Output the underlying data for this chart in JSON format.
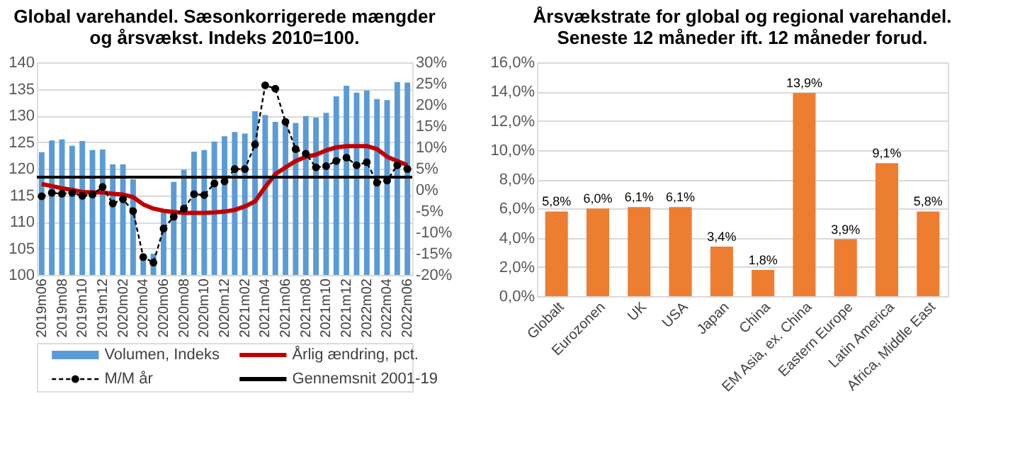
{
  "chart_data": [
    {
      "type": "bar",
      "title": "Global varehandel. Sæsonkorrigerede mængder\nog årsvækst. Indeks 2010=100.",
      "categories": [
        "2019m06",
        null,
        "2019m08",
        null,
        "2019m10",
        null,
        "2019m12",
        null,
        "2020m02",
        null,
        "2020m04",
        null,
        "2020m06",
        null,
        "2020m08",
        null,
        "2020m10",
        null,
        "2020m12",
        null,
        "2021m02",
        null,
        "2021m04",
        null,
        "2021m06",
        null,
        "2021m08",
        null,
        "2021m10",
        null,
        "2021m12",
        null,
        "2022m02",
        null,
        "2022m04",
        null,
        "2022m06"
      ],
      "series": [
        {
          "name": "Volumen, Indeks",
          "type": "bar",
          "color": "#5b9bd5",
          "values": [
            123.1,
            125.3,
            125.5,
            124.3,
            125.2,
            123.5,
            123.6,
            120.8,
            120.8,
            118.0,
            104.0,
            104.0,
            112.0,
            117.5,
            119.8,
            123.2,
            123.5,
            125.1,
            126.1,
            126.9,
            126.6,
            130.8,
            130.1,
            128.8,
            129.2,
            128.6,
            129.9,
            129.6,
            130.5,
            133.6,
            135.6,
            134.3,
            134.7,
            133.1,
            132.9,
            136.3,
            136.2
          ]
        },
        {
          "name": "Årlig ændring, pct.",
          "type": "line",
          "axis": "y2",
          "color": "#c00000",
          "line_style": "solid",
          "marker": "none",
          "values": [
            1.4,
            0.9,
            0.4,
            0.0,
            -0.5,
            -0.6,
            -0.6,
            -0.9,
            -1.1,
            -1.7,
            -3.4,
            -4.4,
            -4.9,
            -5.2,
            -5.4,
            -5.4,
            -5.4,
            -5.3,
            -5.1,
            -4.7,
            -3.9,
            -2.7,
            0.7,
            3.7,
            5.3,
            6.8,
            7.8,
            8.3,
            9.3,
            10.0,
            10.3,
            10.3,
            10.3,
            9.6,
            7.8,
            6.8,
            5.8
          ]
        },
        {
          "name": "M/M år",
          "type": "line",
          "axis": "y2",
          "color": "#000000",
          "line_style": "dashed",
          "marker": "circle",
          "values": [
            -1.5,
            -0.7,
            -0.9,
            -0.7,
            -1.4,
            -1.1,
            0.7,
            -3.2,
            -2.2,
            -5.0,
            -15.8,
            -17.1,
            -9.1,
            -6.3,
            -4.4,
            -1.0,
            -1.2,
            1.5,
            2.0,
            4.9,
            4.9,
            10.7,
            24.6,
            23.8,
            16.0,
            9.6,
            8.5,
            5.3,
            5.6,
            6.8,
            7.6,
            5.8,
            6.5,
            1.7,
            2.2,
            5.8,
            4.9
          ]
        }
      ],
      "ref_lines": [
        {
          "axis": "y2",
          "value": 3,
          "label": "Gennemsnit 2001-19",
          "color": "#000000",
          "line_style": "solid"
        }
      ],
      "ylim": [
        100,
        140
      ],
      "yticks": [
        100,
        105,
        110,
        115,
        120,
        125,
        130,
        135,
        140
      ],
      "y2lim": [
        -20,
        30
      ],
      "y2ticks": [
        {
          "value": -20,
          "label": "-20%"
        },
        {
          "value": -15,
          "label": "-15%"
        },
        {
          "value": -10,
          "label": "-10%"
        },
        {
          "value": -5,
          "label": "-5%"
        },
        {
          "value": 0,
          "label": "0%"
        },
        {
          "value": 5,
          "label": "5%"
        },
        {
          "value": 10,
          "label": "10%"
        },
        {
          "value": 15,
          "label": "15%"
        },
        {
          "value": 20,
          "label": "20%"
        },
        {
          "value": 25,
          "label": "25%"
        },
        {
          "value": 30,
          "label": "30%"
        }
      ],
      "grid": "y",
      "legend": "bottom"
    },
    {
      "type": "bar",
      "title": "Årsvækstrate for global og regional varehandel.\nSeneste 12 måneder ift. 12 måneder forud.",
      "categories": [
        "Globalt",
        "Eurozonen",
        "UK",
        "USA",
        "Japan",
        "China",
        "EM Asia, ex. China",
        "Eastern Europe",
        "Latin America",
        "Africa, Middle East"
      ],
      "series": [
        {
          "color": "#ed7d31",
          "values": [
            5.8,
            6.0,
            6.1,
            6.1,
            3.4,
            1.8,
            13.9,
            3.9,
            9.1,
            5.8
          ],
          "value_labels": [
            "5,8%",
            "6,0%",
            "6,1%",
            "6,1%",
            "3,4%",
            "1,8%",
            "13,9%",
            "3,9%",
            "9,1%",
            "5,8%"
          ]
        }
      ],
      "ylim": [
        0,
        16
      ],
      "yticks": [
        {
          "value": 0,
          "label": "0,0%"
        },
        {
          "value": 2,
          "label": "2,0%"
        },
        {
          "value": 4,
          "label": "4,0%"
        },
        {
          "value": 6,
          "label": "6,0%"
        },
        {
          "value": 8,
          "label": "8,0%"
        },
        {
          "value": 10,
          "label": "10,0%"
        },
        {
          "value": 12,
          "label": "12,0%"
        },
        {
          "value": 14,
          "label": "14,0%"
        },
        {
          "value": 16,
          "label": "16,0%"
        }
      ],
      "grid": "y",
      "legend": false
    }
  ]
}
